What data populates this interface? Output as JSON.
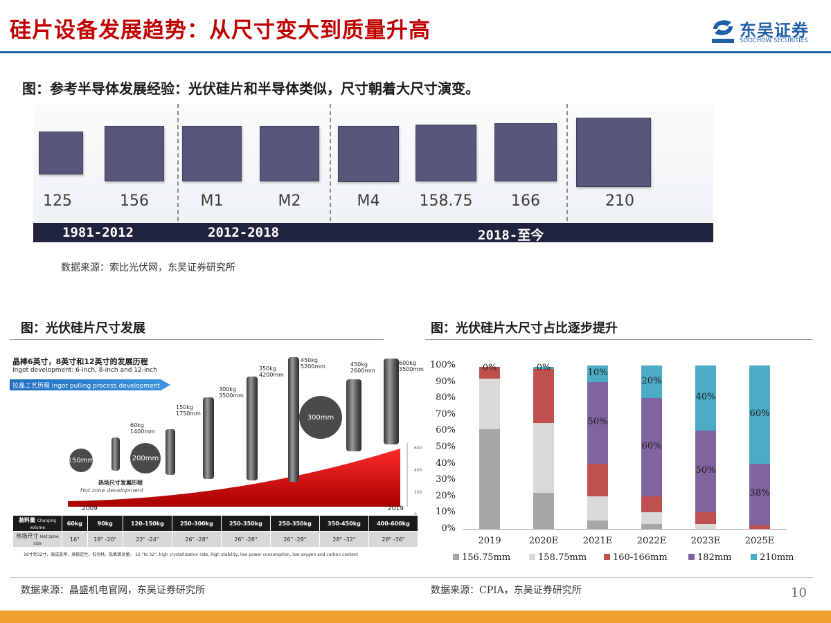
{
  "header": {
    "title": "硅片设备发展趋势：从尺寸变大到质量升高",
    "logo_cn": "东吴证券",
    "logo_en": "SOOCHOW SECURITIES"
  },
  "figure1": {
    "title": "图：参考半导体发展经验：光伏硅片和半导体类似，尺寸朝着大尺寸演变。",
    "wafers": [
      "125",
      "156",
      "M1",
      "M2",
      "M4",
      "158.75",
      "166",
      "210"
    ],
    "eras": [
      "1981-2012",
      "2012-2018",
      "2018-至今"
    ],
    "source": "数据来源：索比光伏网，东吴证券研究所"
  },
  "figure2": {
    "title": "图：光伏硅片尺寸发展",
    "heading_cn": "晶棒6英寸，8英寸和12英寸的发展历程",
    "heading_en": "Ingot development: 6-inch, 8-inch and 12-inch",
    "banner": "拉晶工艺历程 Ingot pulling process development",
    "ingots": [
      {
        "kg": "60kg",
        "mm": "1400mm"
      },
      {
        "kg": "150kg",
        "mm": "1750mm"
      },
      {
        "kg": "300kg",
        "mm": "3500mm"
      },
      {
        "kg": "350kg",
        "mm": "4200mm"
      },
      {
        "kg": "450kg",
        "mm": "5200mm"
      },
      {
        "kg": "450kg",
        "mm": "2600mm"
      },
      {
        "kg": "600kg",
        "mm": "3500mm"
      }
    ],
    "bubbles": [
      "150mm",
      "200mm",
      "300mm"
    ],
    "hotzone_cn": "热场尺寸发展历程",
    "hotzone_en": "Hot zone development",
    "year_start": "2009",
    "year_end": "2019",
    "right_axis": [
      "600",
      "400",
      "200",
      "0"
    ],
    "table": {
      "row1_label_cn": "装料量",
      "row1_label_en": "Charging volume",
      "row1": [
        "60kg",
        "90kg",
        "120-150kg",
        "250-300kg",
        "250-350kg",
        "250-350kg",
        "350-450kg",
        "400-600kg"
      ],
      "row2_label_cn": "热场尺寸",
      "row2_label_en": "Hot zone size",
      "row2": [
        "16\"",
        "18\" -20\"",
        "22\" -24\"",
        "26\" -28\"",
        "26\" -28\"",
        "26\" -28\"",
        "28\" -32\"",
        "28\" -36\""
      ]
    },
    "footnote": "16寸到32寸，高成晶率、高稳定性、低功耗、低氧碳含量。 16 \"to 32\", high crystallization rate, high stability, low power consumption, low oxygen and carbon content",
    "source": "数据来源：晶盛机电官网，东吴证券研究所"
  },
  "figure3": {
    "title": "图：光伏硅片大尺寸占比逐步提升",
    "source": "数据来源：CPIA，东吴证券研究所",
    "colors": {
      "156.75mm": "#a6a6a6",
      "158.75mm": "#d9d9d9",
      "160-166mm": "#c0504d",
      "182mm": "#8064a2",
      "210mm": "#4bacc6"
    }
  },
  "chart_data": {
    "type": "bar",
    "stacked": true,
    "categories": [
      "2019",
      "2020E",
      "2021E",
      "2022E",
      "2023E",
      "2025E"
    ],
    "yticks": [
      "0%",
      "10%",
      "20%",
      "30%",
      "40%",
      "50%",
      "60%",
      "70%",
      "80%",
      "90%",
      "100%"
    ],
    "ylim": [
      0,
      100
    ],
    "legend_position": "bottom",
    "series": [
      {
        "name": "156.75mm",
        "values": [
          61,
          22,
          5,
          3,
          0,
          0
        ]
      },
      {
        "name": "158.75mm",
        "values": [
          31,
          43,
          15,
          7,
          3,
          0
        ]
      },
      {
        "name": "160-166mm",
        "values": [
          7,
          33,
          20,
          10,
          7,
          2
        ]
      },
      {
        "name": "182mm",
        "values": [
          0,
          0,
          50,
          60,
          50,
          38
        ]
      },
      {
        "name": "210mm",
        "values": [
          0,
          1,
          10,
          20,
          40,
          60
        ]
      }
    ],
    "data_labels": [
      {
        "category": "2019",
        "series": "182mm",
        "text": "0%"
      },
      {
        "category": "2020E",
        "series": "182mm",
        "text": "0%"
      },
      {
        "category": "2021E",
        "series": "210mm",
        "text": "10%"
      },
      {
        "category": "2021E",
        "series": "182mm",
        "text": "50%"
      },
      {
        "category": "2022E",
        "series": "210mm",
        "text": "20%"
      },
      {
        "category": "2022E",
        "series": "182mm",
        "text": "60%"
      },
      {
        "category": "2023E",
        "series": "210mm",
        "text": "40%"
      },
      {
        "category": "2023E",
        "series": "182mm",
        "text": "50%"
      },
      {
        "category": "2025E",
        "series": "210mm",
        "text": "60%"
      },
      {
        "category": "2025E",
        "series": "182mm",
        "text": "38%"
      }
    ]
  },
  "page_number": "10"
}
